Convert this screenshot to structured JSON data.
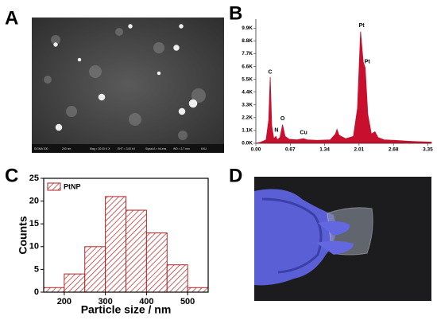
{
  "panel_labels": [
    "A",
    "B",
    "C",
    "D"
  ],
  "sem_image": {
    "caption": [
      "SIGMA 300",
      "200 nm",
      "Mag = 30.00 K X",
      "EHT = 3.00 kV",
      "Signal A = InLens",
      "WD = 3.7 mm",
      "KAU"
    ]
  },
  "chart_data": [
    {
      "type": "area",
      "x": [
        0.0,
        0.1,
        0.2,
        0.25,
        0.28,
        0.31,
        0.35,
        0.39,
        0.42,
        0.47,
        0.52,
        0.57,
        0.65,
        0.8,
        0.93,
        1.0,
        1.2,
        1.45,
        1.55,
        1.58,
        1.62,
        1.75,
        1.9,
        1.98,
        2.04,
        2.09,
        2.13,
        2.18,
        2.25,
        2.32,
        2.38,
        2.5,
        2.7,
        2.9,
        3.1,
        3.42
      ],
      "values": [
        0,
        100,
        300,
        2000,
        5700,
        1500,
        400,
        600,
        300,
        500,
        1600,
        600,
        350,
        300,
        400,
        300,
        250,
        300,
        800,
        1200,
        700,
        400,
        600,
        3000,
        9600,
        7000,
        6500,
        2500,
        800,
        1000,
        500,
        300,
        250,
        200,
        150,
        100
      ],
      "color": "#c8102e",
      "xlim": [
        0,
        3.42
      ],
      "ylim": [
        0,
        10400
      ],
      "xticks": [
        {
          "value": 0,
          "label": "0.00"
        },
        0.67,
        1.34,
        2.01,
        2.68,
        3.35
      ],
      "yticks": [
        {
          "value": 0,
          "label": "0.0K"
        },
        {
          "value": 1100,
          "label": "1.1K"
        },
        {
          "value": 2200,
          "label": "2.2K"
        },
        {
          "value": 3300,
          "label": "3.3K"
        },
        {
          "value": 4400,
          "label": "4.4K"
        },
        {
          "value": 5500,
          "label": "5.5K"
        },
        {
          "value": 6600,
          "label": "6.6K"
        },
        {
          "value": 7700,
          "label": "7.7K"
        },
        {
          "value": 8800,
          "label": "8.8K"
        },
        {
          "value": 9900,
          "label": "9.9K"
        }
      ],
      "annotations": [
        {
          "text": "C",
          "x": 0.28,
          "y": 5900
        },
        {
          "text": "N",
          "x": 0.4,
          "y": 900
        },
        {
          "text": "O",
          "x": 0.52,
          "y": 1900
        },
        {
          "text": "Cu",
          "x": 0.93,
          "y": 700
        },
        {
          "text": "Pt",
          "x": 2.06,
          "y": 9900
        },
        {
          "text": "Pt",
          "x": 2.17,
          "y": 6800
        }
      ]
    },
    {
      "type": "histogram",
      "bins": [
        150,
        200,
        250,
        300,
        350,
        400,
        450,
        500,
        550
      ],
      "values": [
        1,
        4,
        10,
        21,
        18,
        13,
        6,
        1
      ],
      "series_name": "PtNP",
      "color": "#b22222",
      "xlabel": "Particle size / nm",
      "ylabel": "Counts",
      "xlim": [
        150,
        550
      ],
      "ylim": [
        0,
        25
      ],
      "xticks": [
        200,
        300,
        400,
        500
      ],
      "yticks": [
        0,
        5,
        10,
        15,
        20,
        25
      ],
      "legend": "upper-left"
    }
  ]
}
